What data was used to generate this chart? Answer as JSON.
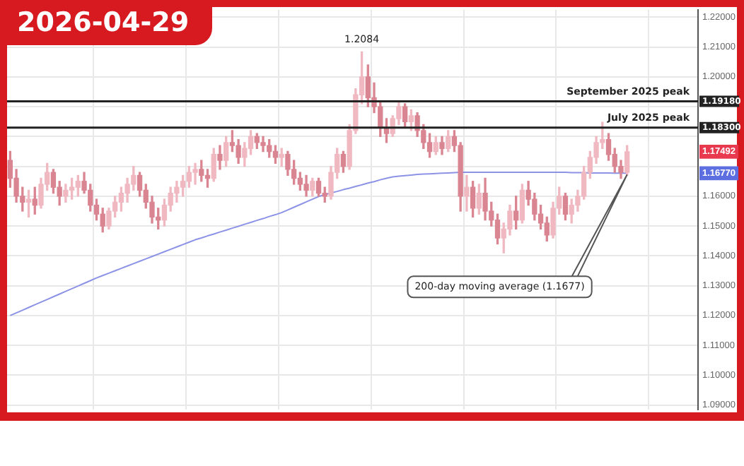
{
  "chart_data": {
    "type": "candlestick",
    "title": "2026-04-29",
    "categories": [
      null,
      null,
      null,
      null,
      null,
      null,
      null,
      null,
      null,
      null,
      null,
      null,
      null,
      null,
      null,
      null,
      null,
      null,
      null,
      null,
      null,
      null,
      null,
      null,
      null,
      null,
      null,
      null,
      null,
      null,
      null,
      null,
      null,
      null,
      null,
      null,
      null,
      null,
      null,
      null,
      null,
      null,
      null,
      null,
      null,
      null,
      null,
      null,
      null,
      null,
      null,
      null,
      null,
      null,
      null,
      null,
      null,
      null,
      null,
      null,
      null,
      null,
      null,
      null,
      null,
      null,
      null,
      null,
      null,
      null,
      null,
      null,
      null,
      null,
      null,
      null,
      null,
      null,
      null,
      null,
      null,
      null,
      null,
      null,
      null,
      null,
      null,
      null,
      null,
      null,
      null,
      null,
      null,
      null,
      null,
      null,
      null,
      null,
      null,
      null,
      null,
      null,
      null,
      null,
      null,
      null,
      null,
      null,
      null,
      null,
      null,
      null
    ],
    "colors": [
      "#d98592",
      "#d98592",
      "#d98592",
      "#f0b8c1",
      "#d98592",
      "#f0b8c1",
      "#f0b8c1",
      "#d98592",
      "#d98592",
      "#f0b8c1",
      "#f0b8c1",
      "#f0b8c1",
      "#d98592",
      "#d98592",
      "#d98592",
      "#d98592",
      "#f0b8c1",
      "#f0b8c1",
      "#f0b8c1",
      "#f0b8c1",
      "#f0b8c1",
      "#d98592",
      "#d98592",
      "#d98592",
      "#d98592",
      "#f0b8c1",
      "#f0b8c1",
      "#f0b8c1",
      "#f0b8c1",
      "#f0b8c1",
      "#f0b8c1",
      "#d98592",
      "#d98592",
      "#f0b8c1",
      "#d98592",
      "#f0b8c1",
      "#d98592",
      "#d98592",
      "#f0b8c1",
      "#f0b8c1",
      "#d98592",
      "#d98592",
      "#d98592",
      "#d98592",
      "#f0b8c1",
      "#d98592",
      "#d98592",
      "#d98592",
      "#d98592",
      "#f0b8c1",
      "#d98592",
      "#d98592",
      "#f0b8c1",
      "#f0b8c1",
      "#d98592",
      "#f0b8c1",
      "#f0b8c1",
      "#f0b8c1",
      "#d98592",
      "#d98592",
      "#d98592",
      "#d98592",
      "#f0b8c1",
      "#f0b8c1",
      "#d98592",
      "#f0b8c1",
      "#d98592",
      "#d98592",
      "#d98592",
      "#f0b8c1",
      "#d98592",
      "#f0b8c1",
      "#d98592",
      "#d98592",
      "#f0b8c1",
      "#d98592",
      "#f0b8c1",
      "#d98592",
      "#d98592",
      "#d98592",
      "#f0b8c1",
      "#f0b8c1",
      "#d98592",
      "#f0b8c1",
      "#d98592",
      "#d98592",
      "#d98592",
      "#d98592",
      "#f0b8c1",
      "#f0b8c1",
      "#d98592",
      "#f0b8c1",
      "#f0b8c1",
      "#f0b8c1",
      "#f0b8c1",
      "#f0b8c1",
      "#f0b8c1",
      "#d98592",
      "#d98592",
      "#d98592",
      "#f0b8c1",
      null,
      null,
      null,
      null,
      null,
      null,
      null,
      null,
      null,
      null,
      null
    ],
    "ohlc": [
      [
        1.172,
        1.175,
        1.163,
        1.166
      ],
      [
        1.166,
        1.169,
        1.158,
        1.16
      ],
      [
        1.16,
        1.163,
        1.155,
        1.158
      ],
      [
        1.158,
        1.162,
        1.153,
        1.159
      ],
      [
        1.159,
        1.163,
        1.154,
        1.157
      ],
      [
        1.157,
        1.166,
        1.156,
        1.164
      ],
      [
        1.164,
        1.171,
        1.162,
        1.168
      ],
      [
        1.168,
        1.169,
        1.161,
        1.163
      ],
      [
        1.163,
        1.165,
        1.157,
        1.16
      ],
      [
        1.16,
        1.164,
        1.158,
        1.162
      ],
      [
        1.162,
        1.166,
        1.159,
        1.163
      ],
      [
        1.163,
        1.167,
        1.16,
        1.165
      ],
      [
        1.165,
        1.168,
        1.161,
        1.162
      ],
      [
        1.162,
        1.164,
        1.155,
        1.157
      ],
      [
        1.157,
        1.159,
        1.152,
        1.154
      ],
      [
        1.154,
        1.156,
        1.148,
        1.15
      ],
      [
        1.15,
        1.156,
        1.149,
        1.155
      ],
      [
        1.155,
        1.16,
        1.153,
        1.158
      ],
      [
        1.158,
        1.163,
        1.155,
        1.161
      ],
      [
        1.161,
        1.166,
        1.158,
        1.164
      ],
      [
        1.164,
        1.17,
        1.162,
        1.167
      ],
      [
        1.167,
        1.168,
        1.16,
        1.162
      ],
      [
        1.162,
        1.164,
        1.156,
        1.158
      ],
      [
        1.158,
        1.16,
        1.151,
        1.153
      ],
      [
        1.153,
        1.156,
        1.149,
        1.152
      ],
      [
        1.152,
        1.159,
        1.15,
        1.157
      ],
      [
        1.157,
        1.163,
        1.155,
        1.161
      ],
      [
        1.161,
        1.165,
        1.158,
        1.163
      ],
      [
        1.163,
        1.167,
        1.16,
        1.165
      ],
      [
        1.165,
        1.17,
        1.163,
        1.168
      ],
      [
        1.168,
        1.171,
        1.164,
        1.169
      ],
      [
        1.169,
        1.172,
        1.165,
        1.167
      ],
      [
        1.167,
        1.169,
        1.163,
        1.166
      ],
      [
        1.166,
        1.176,
        1.165,
        1.174
      ],
      [
        1.174,
        1.177,
        1.169,
        1.172
      ],
      [
        1.172,
        1.18,
        1.17,
        1.178
      ],
      [
        1.178,
        1.182,
        1.175,
        1.177
      ],
      [
        1.177,
        1.179,
        1.171,
        1.173
      ],
      [
        1.173,
        1.178,
        1.17,
        1.176
      ],
      [
        1.176,
        1.182,
        1.174,
        1.18
      ],
      [
        1.18,
        1.181,
        1.176,
        1.178
      ],
      [
        1.178,
        1.18,
        1.175,
        1.177
      ],
      [
        1.177,
        1.179,
        1.173,
        1.175
      ],
      [
        1.175,
        1.177,
        1.171,
        1.173
      ],
      [
        1.173,
        1.176,
        1.17,
        1.174
      ],
      [
        1.174,
        1.175,
        1.167,
        1.169
      ],
      [
        1.169,
        1.172,
        1.164,
        1.166
      ],
      [
        1.166,
        1.168,
        1.162,
        1.164
      ],
      [
        1.164,
        1.167,
        1.16,
        1.162
      ],
      [
        1.162,
        1.166,
        1.16,
        1.165
      ],
      [
        1.165,
        1.166,
        1.16,
        1.161
      ],
      [
        1.161,
        1.163,
        1.158,
        1.16
      ],
      [
        1.16,
        1.17,
        1.159,
        1.168
      ],
      [
        1.168,
        1.176,
        1.166,
        1.174
      ],
      [
        1.174,
        1.175,
        1.168,
        1.17
      ],
      [
        1.17,
        1.184,
        1.169,
        1.182
      ],
      [
        1.182,
        1.196,
        1.181,
        1.194
      ],
      [
        1.194,
        1.2084,
        1.191,
        1.2
      ],
      [
        1.2,
        1.204,
        1.19,
        1.193
      ],
      [
        1.193,
        1.198,
        1.188,
        1.19
      ],
      [
        1.19,
        1.192,
        1.18,
        1.183
      ],
      [
        1.183,
        1.186,
        1.178,
        1.181
      ],
      [
        1.181,
        1.187,
        1.18,
        1.186
      ],
      [
        1.186,
        1.192,
        1.184,
        1.19
      ],
      [
        1.19,
        1.191,
        1.183,
        1.185
      ],
      [
        1.185,
        1.189,
        1.182,
        1.187
      ],
      [
        1.187,
        1.188,
        1.18,
        1.182
      ],
      [
        1.182,
        1.184,
        1.176,
        1.178
      ],
      [
        1.178,
        1.181,
        1.173,
        1.175
      ],
      [
        1.175,
        1.18,
        1.174,
        1.178
      ],
      [
        1.178,
        1.18,
        1.174,
        1.176
      ],
      [
        1.176,
        1.182,
        1.175,
        1.18
      ],
      [
        1.18,
        1.182,
        1.175,
        1.177
      ],
      [
        1.177,
        1.178,
        1.155,
        1.16
      ],
      [
        1.16,
        1.167,
        1.155,
        1.163
      ],
      [
        1.163,
        1.165,
        1.153,
        1.156
      ],
      [
        1.156,
        1.164,
        1.154,
        1.161
      ],
      [
        1.161,
        1.166,
        1.152,
        1.155
      ],
      [
        1.155,
        1.158,
        1.15,
        1.152
      ],
      [
        1.152,
        1.154,
        1.144,
        1.146
      ],
      [
        1.146,
        1.151,
        1.141,
        1.149
      ],
      [
        1.149,
        1.157,
        1.147,
        1.155
      ],
      [
        1.155,
        1.16,
        1.149,
        1.152
      ],
      [
        1.152,
        1.164,
        1.151,
        1.162
      ],
      [
        1.162,
        1.165,
        1.157,
        1.159
      ],
      [
        1.159,
        1.161,
        1.152,
        1.154
      ],
      [
        1.154,
        1.157,
        1.149,
        1.151
      ],
      [
        1.151,
        1.153,
        1.145,
        1.147
      ],
      [
        1.147,
        1.158,
        1.146,
        1.156
      ],
      [
        1.156,
        1.163,
        1.154,
        1.16
      ],
      [
        1.16,
        1.161,
        1.152,
        1.154
      ],
      [
        1.154,
        1.159,
        1.151,
        1.157
      ],
      [
        1.157,
        1.162,
        1.155,
        1.16
      ],
      [
        1.16,
        1.17,
        1.159,
        1.168
      ],
      [
        1.168,
        1.175,
        1.166,
        1.173
      ],
      [
        1.173,
        1.18,
        1.171,
        1.178
      ],
      [
        1.178,
        1.1848,
        1.176,
        1.179
      ],
      [
        1.179,
        1.181,
        1.172,
        1.174
      ],
      [
        1.174,
        1.176,
        1.168,
        1.17
      ],
      [
        1.17,
        1.172,
        1.166,
        1.168
      ],
      [
        1.168,
        1.177,
        1.167,
        1.17492
      ],
      null,
      null,
      null,
      null,
      null,
      null,
      null,
      null,
      null,
      null,
      null
    ],
    "series": [
      {
        "type": "line",
        "color": "#8c93e6",
        "values": [
          1.12,
          1.1209,
          1.1218,
          1.1227,
          1.1236,
          1.1245,
          1.1254,
          1.1263,
          1.1272,
          1.1281,
          1.129,
          1.1299,
          1.1308,
          1.1317,
          1.1326,
          1.1334,
          1.1342,
          1.135,
          1.1358,
          1.1366,
          1.1374,
          1.1382,
          1.139,
          1.1398,
          1.1406,
          1.1414,
          1.1422,
          1.143,
          1.1438,
          1.1446,
          1.1454,
          1.146,
          1.1467,
          1.1473,
          1.148,
          1.1486,
          1.1493,
          1.1499,
          1.1506,
          1.1512,
          1.1519,
          1.1525,
          1.1532,
          1.1538,
          1.1545,
          1.1554,
          1.1563,
          1.1572,
          1.1581,
          1.159,
          1.1599,
          1.1605,
          1.1611,
          1.1616,
          1.1622,
          1.1627,
          1.1633,
          1.1638,
          1.1644,
          1.1649,
          1.1655,
          1.166,
          1.1665,
          1.1667,
          1.1669,
          1.1671,
          1.1673,
          1.1674,
          1.1675,
          1.1676,
          1.1677,
          1.1678,
          1.1679,
          1.168,
          1.168,
          1.168,
          1.168,
          1.168,
          1.168,
          1.168,
          1.168,
          1.168,
          1.168,
          1.168,
          1.168,
          1.168,
          1.168,
          1.168,
          1.168,
          1.168,
          1.168,
          1.1679,
          1.1679,
          1.1679,
          1.1678,
          1.1678,
          1.1678,
          1.1678,
          1.1677,
          1.1677,
          1.1677,
          null,
          null,
          null,
          null,
          null,
          null,
          null,
          null,
          null,
          null,
          null
        ]
      }
    ],
    "ylim": [
      1.0885,
      1.2225
    ],
    "yticks": [
      {
        "value": 1.09,
        "label": "1.09000"
      },
      {
        "value": 1.1,
        "label": "1.10000"
      },
      {
        "value": 1.11,
        "label": "1.11000"
      },
      {
        "value": 1.12,
        "label": "1.12000"
      },
      {
        "value": 1.13,
        "label": "1.13000"
      },
      {
        "value": 1.14,
        "label": "1.14000"
      },
      {
        "value": 1.15,
        "label": "1.15000"
      },
      {
        "value": 1.16,
        "label": "1.16000"
      },
      {
        "value": 1.17,
        "label": null
      },
      {
        "value": 1.18,
        "label": null
      },
      {
        "value": 1.19,
        "label": null
      },
      {
        "value": 1.1677,
        "label": "1.16770"
      },
      {
        "value": 1.17492,
        "label": "1.17492"
      },
      {
        "value": 1.2,
        "label": "1.20000"
      },
      {
        "value": 1.21,
        "label": "1.21000"
      },
      {
        "value": 1.22,
        "label": "1.22000"
      }
    ],
    "ref_lines": [
      {
        "axis": "y",
        "value": 1.1918,
        "label": "1.19180",
        "color": "#222222"
      },
      {
        "axis": "y",
        "value": 1.183,
        "label": "1.18300",
        "color": "#222222"
      }
    ],
    "annotations": [
      {
        "text": "1.2084",
        "y": 1.2084
      },
      {
        "text": "September 2025 peak",
        "y": 1.1918
      },
      {
        "text": "July 2025 peak",
        "y": 1.183
      },
      "200-day moving average (1.1677)"
    ],
    "grid": true,
    "tick_labels": "y",
    "legend": false
  }
}
